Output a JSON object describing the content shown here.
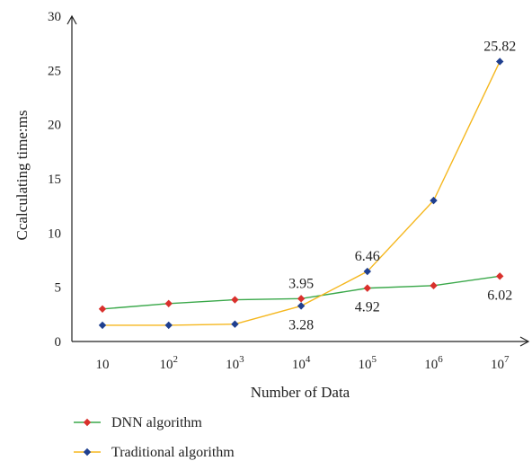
{
  "chart_data": {
    "type": "line",
    "xlabel": "Number of Data",
    "ylabel": "Ccalculating time:ms",
    "ylim": [
      0,
      30
    ],
    "yticks": [
      "0",
      "5",
      "10",
      "15",
      "20",
      "25",
      "30"
    ],
    "categories": [
      {
        "base": "10",
        "exp": ""
      },
      {
        "base": "10",
        "exp": "2"
      },
      {
        "base": "10",
        "exp": "3"
      },
      {
        "base": "10",
        "exp": "4"
      },
      {
        "base": "10",
        "exp": "5"
      },
      {
        "base": "10",
        "exp": "6"
      },
      {
        "base": "10",
        "exp": "7"
      }
    ],
    "grid": false,
    "legend_position": "bottom-left",
    "series": [
      {
        "name": "DNN algorithm",
        "line_color": "#3aa84a",
        "marker_color": "#d9302c",
        "values": [
          3.0,
          3.5,
          3.85,
          3.95,
          4.92,
          5.15,
          6.02
        ]
      },
      {
        "name": "Traditional algorithm",
        "line_color": "#f5b71e",
        "marker_color": "#1f3f8f",
        "values": [
          1.5,
          1.5,
          1.6,
          3.28,
          6.46,
          13.0,
          25.82
        ]
      }
    ],
    "annotations": [
      {
        "text": "3.95",
        "series": 0,
        "index": 3,
        "pos": "above"
      },
      {
        "text": "4.92",
        "series": 0,
        "index": 4,
        "pos": "below"
      },
      {
        "text": "6.02",
        "series": 0,
        "index": 6,
        "pos": "below"
      },
      {
        "text": "3.28",
        "series": 1,
        "index": 3,
        "pos": "below"
      },
      {
        "text": "6.46",
        "series": 1,
        "index": 4,
        "pos": "above"
      },
      {
        "text": "25.82",
        "series": 1,
        "index": 6,
        "pos": "above"
      }
    ]
  }
}
